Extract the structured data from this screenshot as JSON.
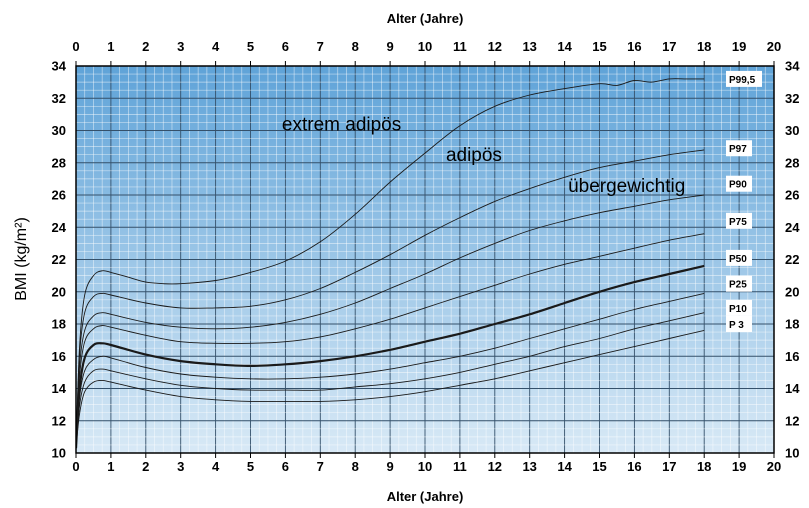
{
  "chart_data": {
    "type": "line",
    "xlabel_top": "Alter (Jahre)",
    "xlabel_bottom": "Alter (Jahre)",
    "ylabel": "BMI (kg/m²)",
    "xlim": [
      0,
      20
    ],
    "ylim": [
      10,
      34
    ],
    "x_ticks": [
      "0",
      "1",
      "2",
      "3",
      "4",
      "5",
      "6",
      "7",
      "8",
      "9",
      "10",
      "11",
      "12",
      "13",
      "14",
      "15",
      "16",
      "17",
      "18",
      "19",
      "20"
    ],
    "y_ticks": [
      "10",
      "12",
      "14",
      "16",
      "18",
      "20",
      "22",
      "24",
      "26",
      "28",
      "30",
      "32",
      "34"
    ],
    "grid": true,
    "zone_labels": [
      {
        "text": "extrem adipös",
        "x": 5.9,
        "y": 30.0
      },
      {
        "text": "adipös",
        "x": 10.6,
        "y": 28.1
      },
      {
        "text": "übergewichtig",
        "x": 14.1,
        "y": 26.2
      }
    ],
    "series": [
      {
        "name": "P99,5",
        "bold": false,
        "x": [
          0,
          0.1,
          0.25,
          0.5,
          0.75,
          1,
          1.5,
          2,
          2.5,
          3,
          4,
          5,
          6,
          7,
          8,
          9,
          10,
          11,
          12,
          13,
          14,
          15,
          15.5,
          16,
          16.5,
          17,
          17.5,
          18
        ],
        "y": [
          10.3,
          16.5,
          19.8,
          21.0,
          21.3,
          21.2,
          20.9,
          20.6,
          20.5,
          20.5,
          20.7,
          21.2,
          21.9,
          23.1,
          24.8,
          26.8,
          28.6,
          30.3,
          31.5,
          32.2,
          32.6,
          32.9,
          32.8,
          33.1,
          33.0,
          33.2,
          33.2,
          33.2
        ]
      },
      {
        "name": "P97",
        "bold": false,
        "x": [
          0,
          0.1,
          0.25,
          0.5,
          0.75,
          1,
          2,
          3,
          4,
          5,
          6,
          7,
          8,
          9,
          10,
          11,
          12,
          13,
          14,
          15,
          16,
          17,
          18
        ],
        "y": [
          10.3,
          16.0,
          18.7,
          19.7,
          19.9,
          19.8,
          19.3,
          19.0,
          19.0,
          19.1,
          19.5,
          20.2,
          21.2,
          22.3,
          23.5,
          24.6,
          25.6,
          26.4,
          27.1,
          27.7,
          28.1,
          28.5,
          28.8
        ]
      },
      {
        "name": "P90",
        "bold": false,
        "x": [
          0,
          0.1,
          0.25,
          0.5,
          0.75,
          1,
          2,
          3,
          4,
          5,
          6,
          7,
          8,
          9,
          10,
          11,
          12,
          13,
          14,
          15,
          16,
          17,
          18
        ],
        "y": [
          10.3,
          15.3,
          17.6,
          18.5,
          18.7,
          18.6,
          18.1,
          17.8,
          17.7,
          17.8,
          18.1,
          18.6,
          19.3,
          20.2,
          21.1,
          22.1,
          23.0,
          23.8,
          24.4,
          24.9,
          25.3,
          25.7,
          26.0
        ]
      },
      {
        "name": "P75",
        "bold": false,
        "x": [
          0,
          0.1,
          0.25,
          0.5,
          0.75,
          1,
          2,
          3,
          4,
          5,
          6,
          7,
          8,
          9,
          10,
          11,
          12,
          13,
          14,
          15,
          16,
          17,
          18
        ],
        "y": [
          10.3,
          14.7,
          16.9,
          17.7,
          17.9,
          17.8,
          17.3,
          16.9,
          16.8,
          16.8,
          16.9,
          17.2,
          17.7,
          18.3,
          19.0,
          19.7,
          20.4,
          21.1,
          21.7,
          22.2,
          22.7,
          23.2,
          23.6
        ]
      },
      {
        "name": "P50",
        "bold": true,
        "x": [
          0,
          0.1,
          0.25,
          0.5,
          0.75,
          1,
          2,
          3,
          4,
          5,
          6,
          7,
          8,
          9,
          10,
          11,
          12,
          13,
          14,
          15,
          16,
          17,
          18
        ],
        "y": [
          10.3,
          13.9,
          15.9,
          16.7,
          16.8,
          16.7,
          16.1,
          15.7,
          15.5,
          15.4,
          15.5,
          15.7,
          16.0,
          16.4,
          16.9,
          17.4,
          18.0,
          18.6,
          19.3,
          20.0,
          20.6,
          21.1,
          21.6
        ]
      },
      {
        "name": "P25",
        "bold": false,
        "x": [
          0,
          0.1,
          0.25,
          0.5,
          0.75,
          1,
          2,
          3,
          4,
          5,
          6,
          7,
          8,
          9,
          10,
          11,
          12,
          13,
          14,
          15,
          16,
          17,
          18
        ],
        "y": [
          10.3,
          13.4,
          15.1,
          15.8,
          16.0,
          15.9,
          15.3,
          14.9,
          14.7,
          14.6,
          14.6,
          14.7,
          14.9,
          15.2,
          15.6,
          16.0,
          16.5,
          17.1,
          17.7,
          18.3,
          18.9,
          19.4,
          19.9
        ]
      },
      {
        "name": "P10",
        "bold": false,
        "x": [
          0,
          0.1,
          0.25,
          0.5,
          0.75,
          1,
          2,
          3,
          4,
          5,
          6,
          7,
          8,
          9,
          10,
          11,
          12,
          13,
          14,
          15,
          16,
          17,
          18
        ],
        "y": [
          10.3,
          12.9,
          14.4,
          15.1,
          15.2,
          15.1,
          14.6,
          14.2,
          14.0,
          13.9,
          13.9,
          13.9,
          14.1,
          14.3,
          14.6,
          15.0,
          15.5,
          16.0,
          16.6,
          17.1,
          17.7,
          18.2,
          18.7
        ]
      },
      {
        "name": "P 3",
        "bold": false,
        "x": [
          0,
          0.1,
          0.25,
          0.5,
          0.75,
          1,
          2,
          3,
          4,
          5,
          6,
          7,
          8,
          9,
          10,
          11,
          12,
          13,
          14,
          15,
          16,
          17,
          18
        ],
        "y": [
          10.3,
          12.4,
          13.8,
          14.4,
          14.5,
          14.4,
          13.9,
          13.5,
          13.3,
          13.2,
          13.2,
          13.2,
          13.3,
          13.5,
          13.8,
          14.2,
          14.6,
          15.1,
          15.6,
          16.1,
          16.6,
          17.1,
          17.6
        ]
      }
    ],
    "series_label_y": {
      "P99,5": 33.2,
      "P97": 28.9,
      "P90": 26.7,
      "P75": 24.4,
      "P50": 22.1,
      "P25": 20.5,
      "P10": 19.0,
      "P 3": 18.0
    }
  }
}
